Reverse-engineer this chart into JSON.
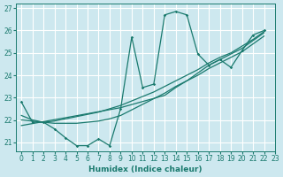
{
  "xlabel": "Humidex (Indice chaleur)",
  "xlim": [
    -0.5,
    23
  ],
  "ylim": [
    20.6,
    27.2
  ],
  "yticks": [
    21,
    22,
    23,
    24,
    25,
    26,
    27
  ],
  "xticks": [
    0,
    1,
    2,
    3,
    4,
    5,
    6,
    7,
    8,
    9,
    10,
    11,
    12,
    13,
    14,
    15,
    16,
    17,
    18,
    19,
    20,
    21,
    22,
    23
  ],
  "bg_color": "#cde8ef",
  "grid_color": "#ffffff",
  "line_color": "#1a7a6e",
  "marker_line": {
    "x": [
      0,
      1,
      2,
      3,
      4,
      5,
      6,
      7,
      8,
      9,
      10,
      11,
      12,
      13,
      14,
      15,
      16,
      17,
      18,
      19,
      20,
      21,
      22
    ],
    "y": [
      22.8,
      21.9,
      21.9,
      21.6,
      21.2,
      20.85,
      20.85,
      21.15,
      20.85,
      22.5,
      25.7,
      23.45,
      23.6,
      26.7,
      26.85,
      26.7,
      24.95,
      24.45,
      24.7,
      24.35,
      25.1,
      25.8,
      26.0
    ]
  },
  "smooth_line1": {
    "x": [
      0,
      1,
      2,
      3,
      4,
      5,
      6,
      7,
      8,
      9,
      10,
      11,
      12,
      13,
      14,
      15,
      16,
      17,
      18,
      19,
      20,
      21,
      22
    ],
    "y": [
      22.2,
      22.0,
      21.9,
      21.85,
      21.85,
      21.85,
      21.9,
      21.95,
      22.05,
      22.2,
      22.45,
      22.7,
      22.95,
      23.2,
      23.5,
      23.75,
      24.0,
      24.3,
      24.55,
      24.8,
      25.05,
      25.4,
      25.75
    ]
  },
  "smooth_line2": {
    "x": [
      0,
      1,
      2,
      3,
      4,
      5,
      6,
      7,
      8,
      9,
      10,
      11,
      12,
      13,
      14,
      15,
      16,
      17,
      18,
      19,
      20,
      21,
      22
    ],
    "y": [
      22.0,
      21.95,
      21.9,
      21.95,
      22.05,
      22.15,
      22.25,
      22.35,
      22.5,
      22.65,
      22.85,
      23.05,
      23.25,
      23.5,
      23.75,
      24.0,
      24.25,
      24.55,
      24.8,
      25.0,
      25.3,
      25.6,
      25.95
    ]
  },
  "smooth_line3": {
    "x": [
      0,
      4,
      9,
      13,
      14,
      15,
      16,
      17,
      18,
      19,
      20,
      21,
      22
    ],
    "y": [
      21.75,
      22.1,
      22.55,
      23.1,
      23.45,
      23.75,
      24.1,
      24.45,
      24.7,
      24.95,
      25.2,
      25.55,
      25.9
    ]
  }
}
